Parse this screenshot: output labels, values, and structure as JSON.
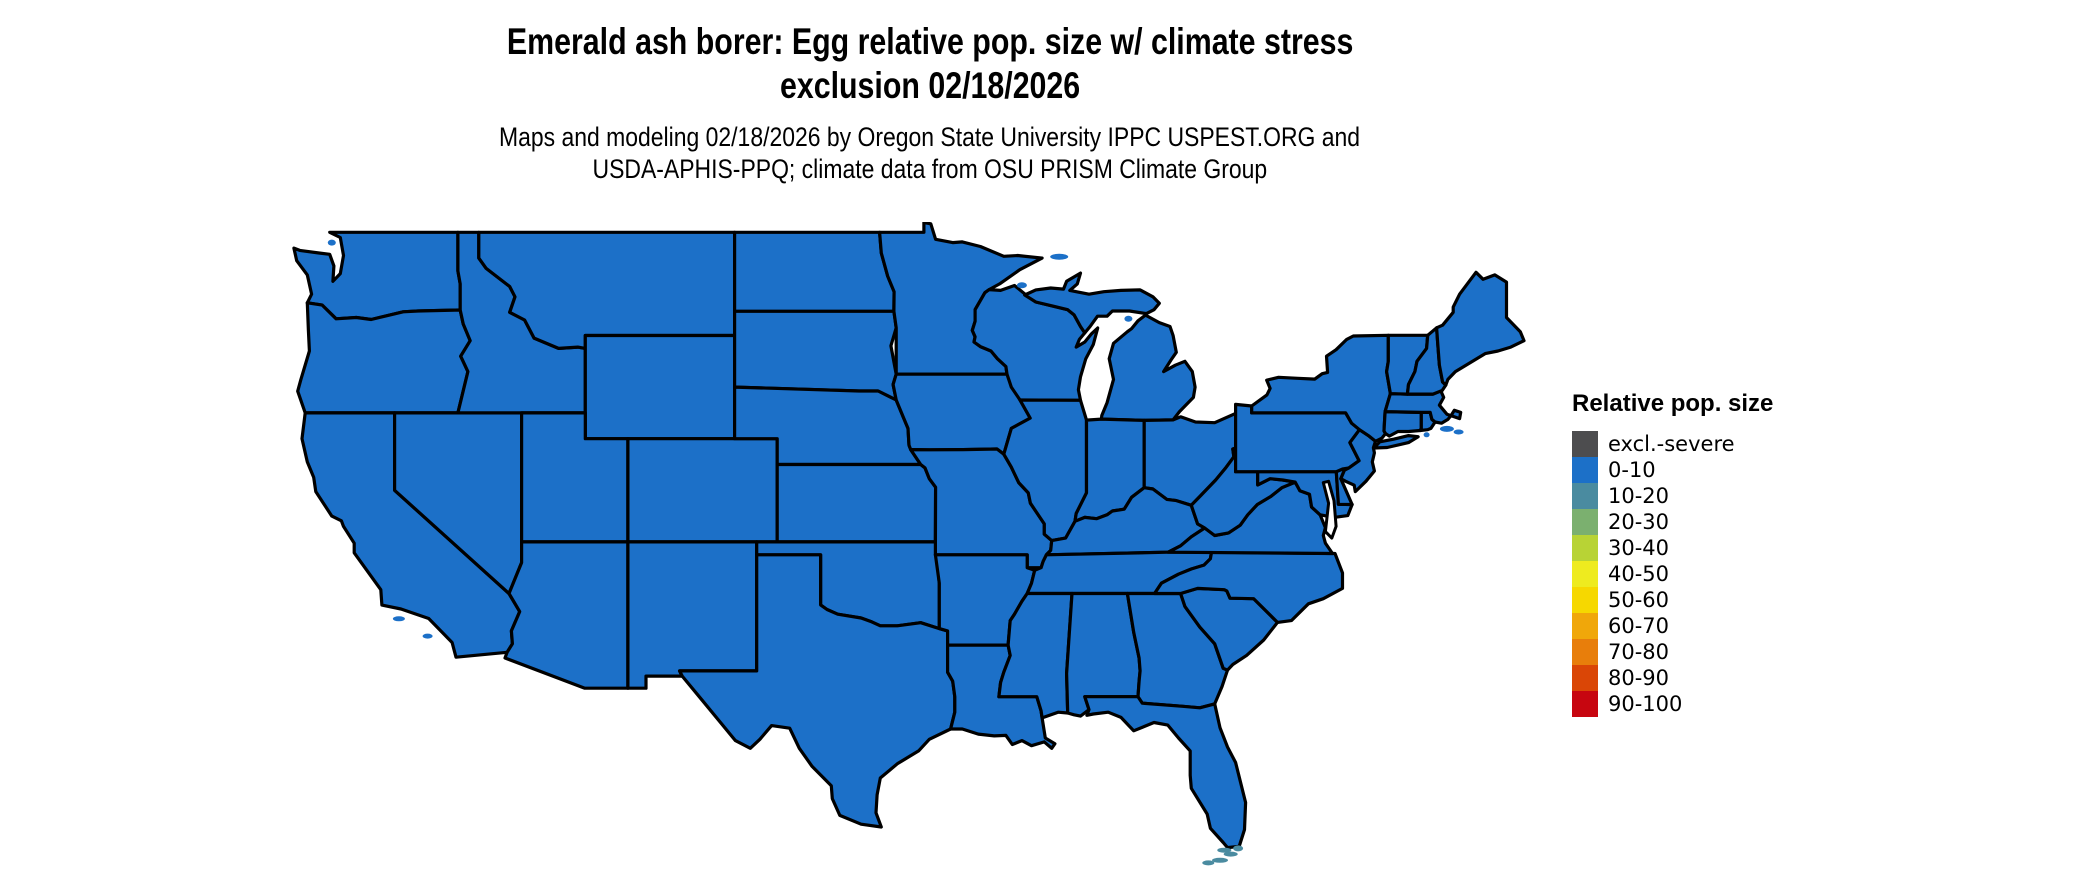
{
  "title": {
    "line1": "Emerald ash borer: Egg relative pop. size w/ climate stress",
    "line2": "exclusion 02/18/2026"
  },
  "subtitle": {
    "line1": "Maps and modeling 02/18/2026 by Oregon State University IPPC USPEST.ORG and",
    "line2": "USDA-APHIS-PPQ; climate data from OSU PRISM Climate Group"
  },
  "legend": {
    "title": "Relative pop. size",
    "items": [
      {
        "label": "excl.-severe",
        "color": "#4D4D4F"
      },
      {
        "label": "0-10",
        "color": "#1C70C8"
      },
      {
        "label": "10-20",
        "color": "#4A8BA0"
      },
      {
        "label": "20-30",
        "color": "#7BB06F"
      },
      {
        "label": "30-40",
        "color": "#B8D335"
      },
      {
        "label": "40-50",
        "color": "#EEEB1F"
      },
      {
        "label": "50-60",
        "color": "#F6D800"
      },
      {
        "label": "60-70",
        "color": "#F0A70A"
      },
      {
        "label": "70-80",
        "color": "#E87E0B"
      },
      {
        "label": "80-90",
        "color": "#DA4606"
      },
      {
        "label": "90-100",
        "color": "#C70610"
      }
    ]
  },
  "map": {
    "state_fill": "#1C70C8",
    "border_color": "#000000",
    "water_color": "#FFFFFF",
    "keys_fill": "#4A8BA0",
    "island_fill": "#1C70C8",
    "displayed_classes_note": "All continental US states shown in the 0-10 class; Florida Keys shown in the 10-20 class"
  }
}
